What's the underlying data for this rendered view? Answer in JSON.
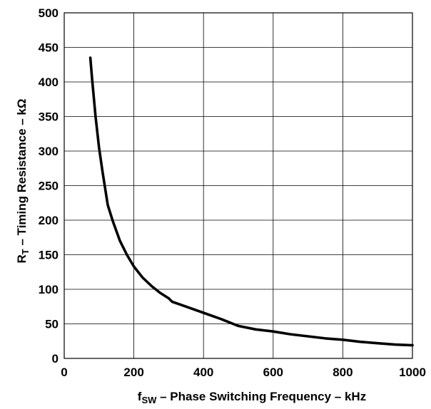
{
  "chart_data": {
    "type": "line",
    "title": "",
    "xlabel": {
      "main": "f",
      "sub": "SW",
      "rest": " – Phase Switching Frequency – kHz"
    },
    "ylabel": {
      "main": "R",
      "sub": "T",
      "rest": " – Timing Resistance – kΩ"
    },
    "xlim": [
      0,
      1000
    ],
    "ylim": [
      0,
      500
    ],
    "xticks": [
      0,
      200,
      400,
      600,
      800,
      1000
    ],
    "yticks": [
      0,
      50,
      100,
      150,
      200,
      250,
      300,
      350,
      400,
      450,
      500
    ],
    "grid": true,
    "series": [
      {
        "x": [
          75,
          80,
          90,
          100,
          110,
          125,
          140,
          160,
          180,
          200,
          225,
          250,
          275,
          300,
          310,
          350,
          400,
          450,
          500,
          550,
          600,
          650,
          700,
          750,
          800,
          850,
          900,
          950,
          1000
        ],
        "y": [
          435,
          405,
          350,
          305,
          270,
          222,
          198,
          170,
          150,
          133,
          117,
          105,
          95,
          87,
          82,
          75,
          66,
          57,
          47,
          42,
          39,
          35,
          32,
          29,
          27,
          24,
          22,
          20,
          19
        ]
      }
    ]
  }
}
